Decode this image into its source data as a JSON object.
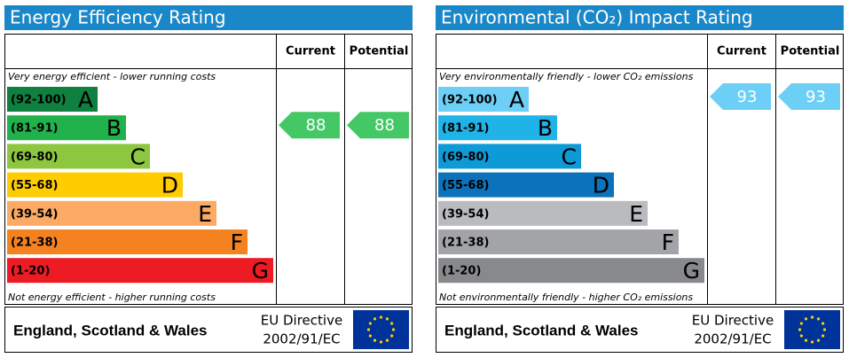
{
  "panels": [
    {
      "title": "Energy Efficiency Rating",
      "current_header": "Current",
      "potential_header": "Potential",
      "top_note": "Very energy efficient - lower running costs",
      "bottom_note": "Not energy efficient - higher running costs",
      "bands": [
        {
          "range": "(92-100)",
          "letter": "A",
          "color": "#0f8040"
        },
        {
          "range": "(81-91)",
          "letter": "B",
          "color": "#21b24b"
        },
        {
          "range": "(69-80)",
          "letter": "C",
          "color": "#8dc63f"
        },
        {
          "range": "(55-68)",
          "letter": "D",
          "color": "#ffcc00"
        },
        {
          "range": "(39-54)",
          "letter": "E",
          "color": "#fcaa65"
        },
        {
          "range": "(21-38)",
          "letter": "F",
          "color": "#f58220"
        },
        {
          "range": "(1-20)",
          "letter": "G",
          "color": "#ed1c24"
        }
      ],
      "current": 88,
      "potential": 88,
      "arrow_color": "#44c866",
      "footer_region": "England, Scotland & Wales",
      "directive": [
        "EU Directive",
        "2002/91/EC"
      ]
    },
    {
      "title": "Environmental (CO₂) Impact Rating",
      "current_header": "Current",
      "potential_header": "Potential",
      "top_note": "Very environmentally friendly - lower CO₂ emissions",
      "bottom_note": "Not environmentally friendly - higher CO₂ emissions",
      "bands": [
        {
          "range": "(92-100)",
          "letter": "A",
          "color": "#6dcff6"
        },
        {
          "range": "(81-91)",
          "letter": "B",
          "color": "#20b3e8"
        },
        {
          "range": "(69-80)",
          "letter": "C",
          "color": "#0d9ad6"
        },
        {
          "range": "(55-68)",
          "letter": "D",
          "color": "#0b72bb"
        },
        {
          "range": "(39-54)",
          "letter": "E",
          "color": "#b9bbbe"
        },
        {
          "range": "(21-38)",
          "letter": "F",
          "color": "#a2a4a7"
        },
        {
          "range": "(1-20)",
          "letter": "G",
          "color": "#87898c"
        }
      ],
      "current": 93,
      "potential": 93,
      "arrow_color": "#6dcff6",
      "footer_region": "England, Scotland & Wales",
      "directive": [
        "EU Directive",
        "2002/91/EC"
      ]
    }
  ]
}
